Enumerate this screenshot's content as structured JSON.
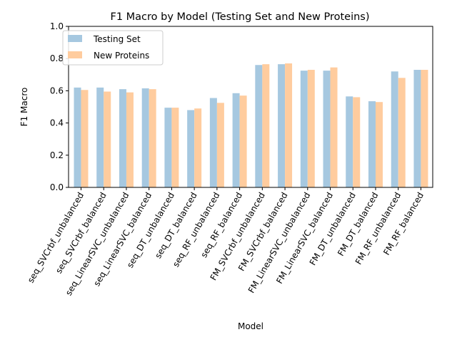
{
  "chart_data": {
    "type": "bar",
    "title": "F1 Macro by Model (Testing Set and New Proteins)",
    "xlabel": "Model",
    "ylabel": "F1 Macro",
    "ylim": [
      0,
      1.0
    ],
    "yticks": [
      "0.0",
      "0.2",
      "0.4",
      "0.6",
      "0.8",
      "1.0"
    ],
    "grid": false,
    "legend_position": "top-left",
    "categories": [
      "seq_SVCrbf_unbalanced",
      "seq_SVCrbf_balanced",
      "seq_LinearSVC_unbalanced",
      "seq_LinearSVC_balanced",
      "seq_DT_unbalanced",
      "seq_DT_balanced",
      "seq_RF_unbalanced",
      "seq_RF_balanced",
      "FM_SVCrbf_unbalanced",
      "FM_SVCrbf_balanced",
      "FM_LinearSVC_unbalanced",
      "FM_LinearSVC_balanced",
      "FM_DT_unbalanced",
      "FM_DT_balanced",
      "FM_RF_unbalanced",
      "FM_RF_balanced"
    ],
    "series": [
      {
        "name": "Testing Set",
        "color": "#a6c8e0",
        "values": [
          0.62,
          0.62,
          0.61,
          0.615,
          0.495,
          0.48,
          0.555,
          0.585,
          0.76,
          0.765,
          0.725,
          0.725,
          0.565,
          0.535,
          0.72,
          0.73
        ]
      },
      {
        "name": "New Proteins",
        "color": "#ffcc9e",
        "values": [
          0.605,
          0.595,
          0.59,
          0.61,
          0.495,
          0.49,
          0.525,
          0.57,
          0.765,
          0.77,
          0.73,
          0.745,
          0.56,
          0.53,
          0.68,
          0.73
        ]
      }
    ]
  }
}
